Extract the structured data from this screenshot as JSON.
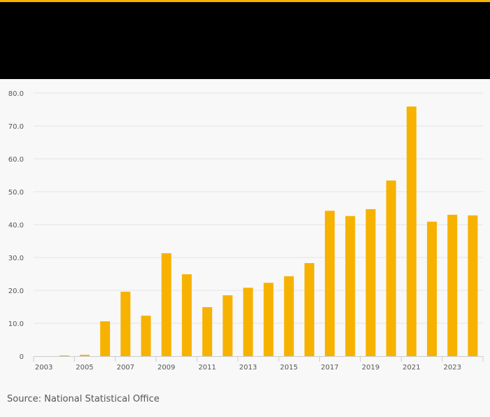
{
  "colors": {
    "accent": "#f7b200",
    "bar": "#f7b200",
    "header_bg": "#000000",
    "background": "#f8f8f8",
    "grid": "#e3e3e3",
    "tick_text": "#555555"
  },
  "source": "Source: National Statistical Office",
  "chart_data": {
    "type": "bar",
    "title": "",
    "xlabel": "",
    "ylabel": "",
    "categories": [
      "2003",
      "2004",
      "2005",
      "2006",
      "2007",
      "2008",
      "2009",
      "2010",
      "2011",
      "2012",
      "2013",
      "2014",
      "2015",
      "2016",
      "2017",
      "2018",
      "2019",
      "2020",
      "2021",
      "2022",
      "2023",
      "2024"
    ],
    "x_tick_labels": [
      "2003",
      "2005",
      "2007",
      "2009",
      "2011",
      "2013",
      "2015",
      "2017",
      "2019",
      "2021",
      "2023"
    ],
    "values": [
      0,
      0.2,
      0.4,
      10.6,
      19.6,
      12.3,
      31.3,
      24.9,
      14.9,
      18.5,
      20.8,
      22.3,
      24.3,
      28.3,
      44.2,
      42.6,
      44.7,
      53.4,
      75.9,
      40.9,
      43.0,
      42.8
    ],
    "y_ticks": [
      "0",
      "10.0",
      "20.0",
      "30.0",
      "40.0",
      "50.0",
      "60.0",
      "70.0",
      "80.0"
    ],
    "ylim": [
      0,
      80
    ],
    "grid": true,
    "legend": "none"
  }
}
